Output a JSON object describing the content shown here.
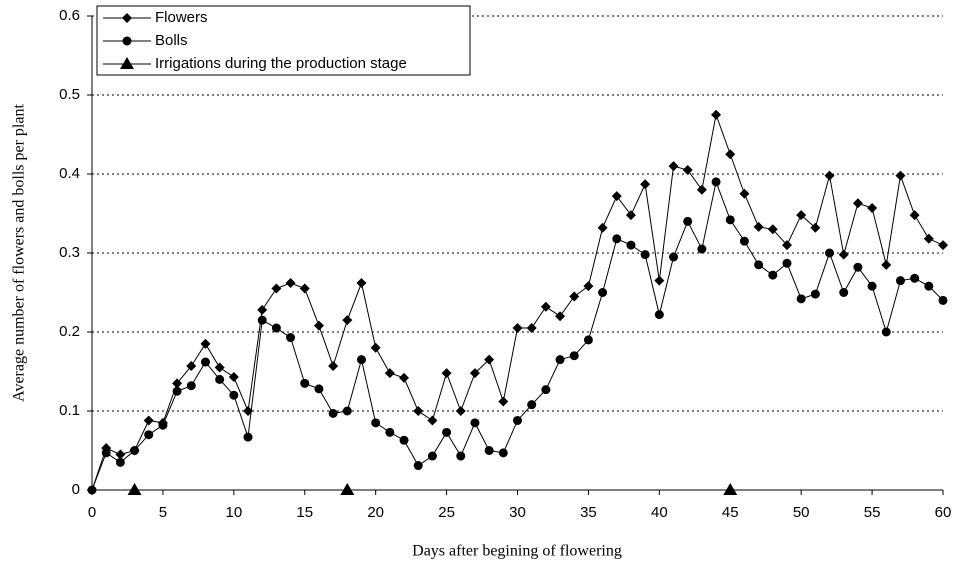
{
  "chart_data": {
    "type": "line",
    "x_label": "Days after begining of flowering",
    "y_label": "Average number of flowers and bolls per plant",
    "xlim": [
      0,
      60
    ],
    "xticks": [
      0,
      5,
      10,
      15,
      20,
      25,
      30,
      35,
      40,
      45,
      50,
      55,
      60
    ],
    "ylim": [
      0,
      0.6
    ],
    "yticks": [
      0,
      0.1,
      0.2,
      0.3,
      0.4,
      0.5,
      0.6
    ],
    "grid": true,
    "legend": "upper left",
    "series": [
      {
        "name": "Flowers",
        "color": "#000000",
        "marker": "diamond",
        "line": true,
        "x": [
          0,
          1,
          2,
          3,
          4,
          5,
          6,
          7,
          8,
          9,
          10,
          11,
          12,
          13,
          14,
          15,
          16,
          17,
          18,
          19,
          20,
          21,
          22,
          23,
          24,
          25,
          26,
          27,
          28,
          29,
          30,
          31,
          32,
          33,
          34,
          35,
          36,
          37,
          38,
          39,
          40,
          41,
          42,
          43,
          44,
          45,
          46,
          47,
          48,
          49,
          50,
          51,
          52,
          53,
          54,
          55,
          56,
          57,
          58,
          59,
          60
        ],
        "values": [
          0,
          0.053,
          0.045,
          0.05,
          0.088,
          0.085,
          0.135,
          0.157,
          0.185,
          0.155,
          0.143,
          0.1,
          0.228,
          0.255,
          0.262,
          0.255,
          0.208,
          0.157,
          0.215,
          0.262,
          0.18,
          0.148,
          0.142,
          0.1,
          0.088,
          0.148,
          0.1,
          0.148,
          0.165,
          0.112,
          0.205,
          0.205,
          0.232,
          0.22,
          0.245,
          0.258,
          0.332,
          0.372,
          0.348,
          0.387,
          0.265,
          0.41,
          0.405,
          0.38,
          0.475,
          0.425,
          0.375,
          0.333,
          0.33,
          0.31,
          0.348,
          0.332,
          0.398,
          0.298,
          0.363,
          0.357,
          0.285,
          0.398,
          0.348,
          0.318,
          0.31
        ]
      },
      {
        "name": "Bolls",
        "color": "#000000",
        "marker": "circle",
        "line": true,
        "x": [
          0,
          1,
          2,
          3,
          4,
          5,
          6,
          7,
          8,
          9,
          10,
          11,
          12,
          13,
          14,
          15,
          16,
          17,
          18,
          19,
          20,
          21,
          22,
          23,
          24,
          25,
          26,
          27,
          28,
          29,
          30,
          31,
          32,
          33,
          34,
          35,
          36,
          37,
          38,
          39,
          40,
          41,
          42,
          43,
          44,
          45,
          46,
          47,
          48,
          49,
          50,
          51,
          52,
          53,
          54,
          55,
          56,
          57,
          58,
          59,
          60
        ],
        "values": [
          0,
          0.047,
          0.035,
          0.05,
          0.07,
          0.082,
          0.125,
          0.132,
          0.162,
          0.14,
          0.12,
          0.067,
          0.215,
          0.205,
          0.193,
          0.135,
          0.128,
          0.097,
          0.1,
          0.165,
          0.085,
          0.073,
          0.063,
          0.031,
          0.043,
          0.073,
          0.043,
          0.085,
          0.05,
          0.047,
          0.088,
          0.108,
          0.127,
          0.165,
          0.17,
          0.19,
          0.25,
          0.318,
          0.31,
          0.298,
          0.222,
          0.295,
          0.34,
          0.305,
          0.39,
          0.342,
          0.315,
          0.285,
          0.272,
          0.287,
          0.242,
          0.248,
          0.3,
          0.25,
          0.282,
          0.258,
          0.2,
          0.265,
          0.268,
          0.258,
          0.24
        ]
      },
      {
        "name": "Irrigations during the production stage",
        "color": "#000000",
        "marker": "triangle",
        "line": false,
        "x": [
          3,
          18,
          45
        ],
        "values": [
          0,
          0,
          0
        ]
      }
    ]
  }
}
